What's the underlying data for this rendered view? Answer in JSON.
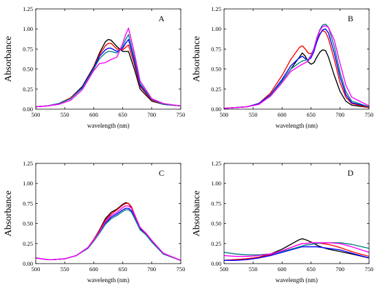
{
  "chart_data": [
    {
      "type": "line",
      "panel_label": "A",
      "xlabel": "wavelength (nm)",
      "ylabel": "Absorbance",
      "xlim": [
        500,
        750
      ],
      "ylim": [
        0,
        1.25
      ],
      "xticks": [
        500,
        550,
        600,
        650,
        700,
        750
      ],
      "yticks": [
        0.0,
        0.25,
        0.5,
        0.75,
        1.0,
        1.25
      ],
      "grid": false,
      "series": [
        {
          "color": "#000000",
          "x": [
            500,
            520,
            540,
            560,
            580,
            600,
            610,
            620,
            625,
            630,
            640,
            650,
            655,
            660,
            670,
            680,
            700,
            720,
            750
          ],
          "y": [
            0.03,
            0.04,
            0.07,
            0.14,
            0.28,
            0.53,
            0.7,
            0.84,
            0.87,
            0.86,
            0.78,
            0.72,
            0.72,
            0.72,
            0.5,
            0.25,
            0.1,
            0.06,
            0.04
          ]
        },
        {
          "color": "#ff0000",
          "x": [
            500,
            520,
            540,
            560,
            580,
            600,
            610,
            620,
            625,
            630,
            640,
            650,
            655,
            660,
            670,
            680,
            700,
            720,
            750
          ],
          "y": [
            0.03,
            0.04,
            0.07,
            0.14,
            0.27,
            0.52,
            0.68,
            0.79,
            0.82,
            0.82,
            0.75,
            0.74,
            0.77,
            0.8,
            0.56,
            0.28,
            0.11,
            0.06,
            0.04
          ]
        },
        {
          "color": "#0000ff",
          "x": [
            500,
            520,
            540,
            560,
            580,
            600,
            610,
            620,
            625,
            630,
            640,
            650,
            655,
            660,
            670,
            680,
            700,
            720,
            750
          ],
          "y": [
            0.03,
            0.04,
            0.07,
            0.13,
            0.27,
            0.51,
            0.66,
            0.74,
            0.76,
            0.76,
            0.72,
            0.76,
            0.82,
            0.87,
            0.6,
            0.3,
            0.12,
            0.06,
            0.04
          ]
        },
        {
          "color": "#008080",
          "x": [
            500,
            520,
            540,
            560,
            580,
            600,
            610,
            620,
            625,
            630,
            640,
            650,
            655,
            660,
            670,
            680,
            700,
            720,
            750
          ],
          "y": [
            0.03,
            0.04,
            0.07,
            0.13,
            0.26,
            0.5,
            0.63,
            0.7,
            0.72,
            0.72,
            0.7,
            0.78,
            0.87,
            0.93,
            0.64,
            0.32,
            0.12,
            0.06,
            0.04
          ]
        },
        {
          "color": "#ff00ff",
          "x": [
            500,
            520,
            540,
            560,
            580,
            600,
            610,
            620,
            625,
            630,
            640,
            650,
            655,
            660,
            670,
            680,
            700,
            720,
            750
          ],
          "y": [
            0.03,
            0.04,
            0.06,
            0.11,
            0.24,
            0.48,
            0.57,
            0.58,
            0.6,
            0.62,
            0.65,
            0.82,
            0.93,
            1.01,
            0.7,
            0.35,
            0.13,
            0.07,
            0.04
          ]
        }
      ]
    },
    {
      "type": "line",
      "panel_label": "B",
      "xlabel": "wavelength (nm)",
      "ylabel": "Absorbance",
      "xlim": [
        500,
        750
      ],
      "ylim": [
        0,
        1.25
      ],
      "xticks": [
        500,
        550,
        600,
        650,
        700,
        750
      ],
      "yticks": [
        0.0,
        0.25,
        0.5,
        0.75,
        1.0,
        1.25
      ],
      "grid": false,
      "series": [
        {
          "color": "#000000",
          "x": [
            500,
            520,
            540,
            560,
            580,
            600,
            615,
            630,
            635,
            640,
            645,
            650,
            655,
            660,
            665,
            670,
            675,
            680,
            690,
            700,
            710,
            720,
            750
          ],
          "y": [
            0.01,
            0.02,
            0.03,
            0.07,
            0.18,
            0.35,
            0.5,
            0.65,
            0.7,
            0.66,
            0.59,
            0.56,
            0.58,
            0.65,
            0.71,
            0.74,
            0.73,
            0.65,
            0.42,
            0.22,
            0.1,
            0.05,
            0.02
          ]
        },
        {
          "color": "#ff0000",
          "x": [
            500,
            520,
            540,
            560,
            580,
            600,
            615,
            630,
            635,
            640,
            645,
            650,
            655,
            660,
            665,
            670,
            675,
            680,
            690,
            700,
            710,
            720,
            750
          ],
          "y": [
            0.01,
            0.02,
            0.03,
            0.07,
            0.2,
            0.42,
            0.62,
            0.77,
            0.79,
            0.75,
            0.7,
            0.69,
            0.74,
            0.85,
            0.94,
            0.98,
            0.96,
            0.88,
            0.62,
            0.33,
            0.15,
            0.07,
            0.02
          ]
        },
        {
          "color": "#0000ff",
          "x": [
            500,
            520,
            540,
            560,
            580,
            600,
            615,
            630,
            635,
            640,
            645,
            650,
            655,
            660,
            665,
            670,
            675,
            680,
            690,
            700,
            710,
            720,
            750
          ],
          "y": [
            0.01,
            0.02,
            0.03,
            0.07,
            0.18,
            0.37,
            0.54,
            0.64,
            0.66,
            0.63,
            0.61,
            0.64,
            0.72,
            0.84,
            0.93,
            0.99,
            1.0,
            0.95,
            0.7,
            0.4,
            0.18,
            0.08,
            0.03
          ]
        },
        {
          "color": "#008080",
          "x": [
            500,
            520,
            540,
            560,
            580,
            600,
            615,
            630,
            635,
            640,
            645,
            650,
            655,
            660,
            665,
            670,
            675,
            680,
            690,
            700,
            710,
            720,
            750
          ],
          "y": [
            0.01,
            0.02,
            0.03,
            0.06,
            0.17,
            0.35,
            0.5,
            0.58,
            0.6,
            0.61,
            0.62,
            0.67,
            0.76,
            0.89,
            0.99,
            1.05,
            1.06,
            1.02,
            0.78,
            0.46,
            0.22,
            0.1,
            0.03
          ]
        },
        {
          "color": "#ff00ff",
          "x": [
            500,
            520,
            540,
            560,
            580,
            600,
            615,
            630,
            635,
            640,
            645,
            650,
            655,
            660,
            665,
            670,
            675,
            680,
            690,
            700,
            710,
            720,
            750
          ],
          "y": [
            0.01,
            0.02,
            0.03,
            0.06,
            0.16,
            0.33,
            0.47,
            0.54,
            0.56,
            0.58,
            0.6,
            0.66,
            0.75,
            0.88,
            0.98,
            1.03,
            1.04,
            1.02,
            0.86,
            0.57,
            0.3,
            0.15,
            0.04
          ]
        }
      ]
    },
    {
      "type": "line",
      "panel_label": "C",
      "xlabel": "wavelength (nm)",
      "ylabel": "Absorbance",
      "xlim": [
        500,
        750
      ],
      "ylim": [
        0,
        1.25
      ],
      "xticks": [
        500,
        550,
        600,
        650,
        700,
        750
      ],
      "yticks": [
        0.0,
        0.25,
        0.5,
        0.75,
        1.0,
        1.25
      ],
      "grid": false,
      "series": [
        {
          "color": "#000000",
          "x": [
            500,
            520,
            530,
            550,
            570,
            590,
            600,
            610,
            620,
            630,
            640,
            650,
            655,
            660,
            665,
            670,
            680,
            690,
            700,
            720,
            750
          ],
          "y": [
            0.07,
            0.05,
            0.05,
            0.06,
            0.1,
            0.2,
            0.3,
            0.42,
            0.56,
            0.64,
            0.68,
            0.74,
            0.76,
            0.75,
            0.7,
            0.6,
            0.44,
            0.36,
            0.28,
            0.12,
            0.04
          ]
        },
        {
          "color": "#ff0000",
          "x": [
            500,
            520,
            530,
            550,
            570,
            590,
            600,
            610,
            620,
            630,
            640,
            650,
            655,
            660,
            665,
            670,
            680,
            690,
            700,
            720,
            750
          ],
          "y": [
            0.07,
            0.05,
            0.05,
            0.06,
            0.1,
            0.2,
            0.3,
            0.41,
            0.54,
            0.62,
            0.67,
            0.73,
            0.75,
            0.75,
            0.71,
            0.62,
            0.45,
            0.37,
            0.28,
            0.12,
            0.04
          ]
        },
        {
          "color": "#0000ff",
          "x": [
            500,
            520,
            530,
            550,
            570,
            590,
            600,
            610,
            620,
            630,
            640,
            650,
            655,
            660,
            665,
            670,
            680,
            690,
            700,
            720,
            750
          ],
          "y": [
            0.07,
            0.05,
            0.05,
            0.06,
            0.1,
            0.2,
            0.29,
            0.39,
            0.5,
            0.58,
            0.62,
            0.67,
            0.69,
            0.69,
            0.66,
            0.58,
            0.43,
            0.36,
            0.27,
            0.12,
            0.04
          ]
        },
        {
          "color": "#008080",
          "x": [
            500,
            520,
            530,
            550,
            570,
            590,
            600,
            610,
            620,
            630,
            640,
            650,
            655,
            660,
            665,
            670,
            680,
            690,
            700,
            720,
            750
          ],
          "y": [
            0.07,
            0.05,
            0.05,
            0.06,
            0.1,
            0.19,
            0.28,
            0.38,
            0.49,
            0.56,
            0.6,
            0.65,
            0.67,
            0.67,
            0.64,
            0.57,
            0.42,
            0.36,
            0.27,
            0.12,
            0.04
          ]
        },
        {
          "color": "#ff00ff",
          "x": [
            500,
            520,
            530,
            550,
            570,
            590,
            600,
            610,
            620,
            630,
            640,
            650,
            655,
            660,
            665,
            670,
            680,
            690,
            700,
            720,
            750
          ],
          "y": [
            0.07,
            0.05,
            0.05,
            0.06,
            0.1,
            0.2,
            0.29,
            0.4,
            0.52,
            0.6,
            0.64,
            0.7,
            0.72,
            0.72,
            0.69,
            0.61,
            0.45,
            0.38,
            0.29,
            0.13,
            0.04
          ]
        }
      ]
    },
    {
      "type": "line",
      "panel_label": "D",
      "xlabel": "wavelength (nm)",
      "ylabel": "Absorbance",
      "xlim": [
        500,
        750
      ],
      "ylim": [
        0,
        1.25
      ],
      "xticks": [
        500,
        550,
        600,
        650,
        700,
        750
      ],
      "yticks": [
        0.0,
        0.25,
        0.5,
        0.75,
        1.0,
        1.25
      ],
      "grid": false,
      "series": [
        {
          "color": "#000000",
          "x": [
            500,
            520,
            540,
            560,
            580,
            600,
            615,
            630,
            635,
            640,
            650,
            660,
            670,
            680,
            700,
            720,
            750
          ],
          "y": [
            0.04,
            0.05,
            0.06,
            0.08,
            0.12,
            0.18,
            0.24,
            0.3,
            0.31,
            0.3,
            0.27,
            0.23,
            0.2,
            0.18,
            0.15,
            0.12,
            0.07
          ]
        },
        {
          "color": "#ff0000",
          "x": [
            500,
            520,
            540,
            560,
            580,
            600,
            615,
            630,
            635,
            640,
            650,
            660,
            670,
            680,
            700,
            720,
            750
          ],
          "y": [
            0.04,
            0.05,
            0.06,
            0.08,
            0.11,
            0.16,
            0.2,
            0.24,
            0.25,
            0.25,
            0.26,
            0.26,
            0.25,
            0.24,
            0.2,
            0.15,
            0.09
          ]
        },
        {
          "color": "#0000ff",
          "x": [
            500,
            520,
            540,
            560,
            580,
            600,
            615,
            630,
            635,
            640,
            650,
            660,
            670,
            680,
            700,
            720,
            750
          ],
          "y": [
            0.04,
            0.04,
            0.05,
            0.07,
            0.1,
            0.14,
            0.17,
            0.2,
            0.21,
            0.21,
            0.21,
            0.21,
            0.2,
            0.19,
            0.17,
            0.13,
            0.07
          ]
        },
        {
          "color": "#008080",
          "x": [
            500,
            520,
            540,
            560,
            580,
            600,
            615,
            630,
            635,
            640,
            650,
            660,
            670,
            680,
            700,
            720,
            750
          ],
          "y": [
            0.14,
            0.12,
            0.11,
            0.11,
            0.12,
            0.15,
            0.18,
            0.21,
            0.22,
            0.23,
            0.24,
            0.25,
            0.26,
            0.26,
            0.26,
            0.24,
            0.19
          ]
        },
        {
          "color": "#ff00ff",
          "x": [
            500,
            520,
            540,
            560,
            580,
            600,
            615,
            630,
            635,
            640,
            650,
            660,
            670,
            680,
            700,
            720,
            750
          ],
          "y": [
            0.1,
            0.09,
            0.09,
            0.1,
            0.12,
            0.16,
            0.2,
            0.24,
            0.25,
            0.25,
            0.26,
            0.26,
            0.26,
            0.26,
            0.25,
            0.21,
            0.14
          ]
        }
      ]
    }
  ]
}
